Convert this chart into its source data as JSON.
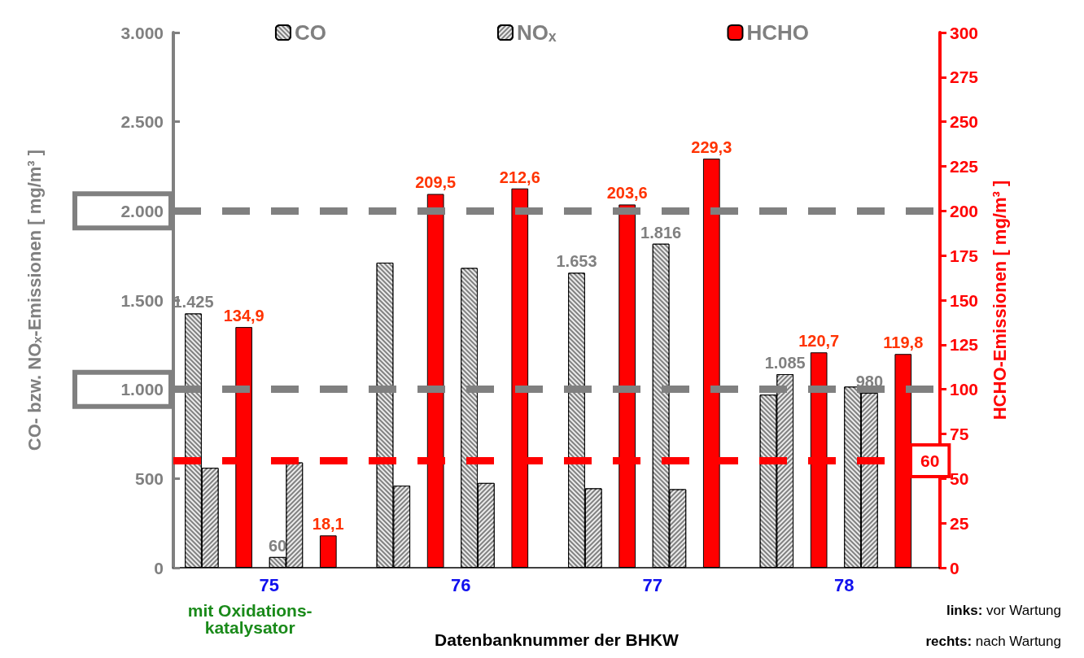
{
  "chart_data": {
    "type": "bar",
    "categories": [
      "75",
      "76",
      "77",
      "78"
    ],
    "xlabel": "Datenbanknummer der BHKW",
    "ylabel": "CO- bzw. NOₓ-Emissionen [ mg/m³ ]",
    "y2label": "HCHO-Emissionen [ mg/m³ ]",
    "series": [
      {
        "name": "CO",
        "color": "#808080",
        "values": [
          1425,
          1710,
          1653,
          970
        ],
        "value_labels": [
          "1.425",
          null,
          "1.653",
          null
        ]
      },
      {
        "name": "NOₓ",
        "color": "#808080",
        "values": [
          560,
          460,
          445,
          1085
        ],
        "value_labels": [
          null,
          null,
          null,
          "1.085"
        ]
      },
      {
        "name": "HCHO",
        "color": "#ff0000",
        "axis": "y2",
        "values": [
          134.9,
          209.5,
          203.6,
          120.7
        ],
        "value_labels": [
          "134,9",
          "209,5",
          "203,6",
          "120,7"
        ]
      },
      {
        "color": "#808080",
        "values": [
          60,
          1680,
          1816,
          1015
        ],
        "value_labels": [
          "60",
          null,
          "1.816",
          null
        ]
      },
      {
        "color": "#808080",
        "values": [
          590,
          475,
          440,
          980
        ],
        "value_labels": [
          null,
          null,
          null,
          "980"
        ]
      },
      {
        "color": "#ff0000",
        "axis": "y2",
        "values": [
          18.1,
          212.6,
          229.3,
          119.8
        ],
        "value_labels": [
          "18,1",
          "212,6",
          "229,3",
          "119,8"
        ]
      }
    ],
    "ylim": [
      0,
      3000
    ],
    "yticks": [
      0,
      500,
      {
        "value": 1000,
        "label": "1.000"
      },
      {
        "value": 1500,
        "label": "1.500"
      },
      {
        "value": 2000,
        "label": "2.000"
      },
      {
        "value": 2500,
        "label": "2.500"
      },
      {
        "value": 3000,
        "label": "3.000"
      }
    ],
    "y2lim": [
      0,
      300
    ],
    "y2ticks": [
      0,
      25,
      50,
      75,
      100,
      125,
      150,
      175,
      200,
      225,
      250,
      275,
      300
    ],
    "ref_lines": [
      {
        "axis": "y",
        "value": 2000,
        "color": "#808080",
        "line_style": "dashed"
      },
      {
        "axis": "y",
        "value": 1000,
        "color": "#808080",
        "line_style": "dashed"
      },
      {
        "axis": "y2",
        "value": 60,
        "label": "60",
        "color": "#ff0000",
        "line_style": "dashed"
      }
    ],
    "annotations": [
      "mit Oxidations-\nkatalysator",
      "links: vor Wartung",
      "rechts: nach Wartung"
    ],
    "legend": "top",
    "grid": false
  }
}
